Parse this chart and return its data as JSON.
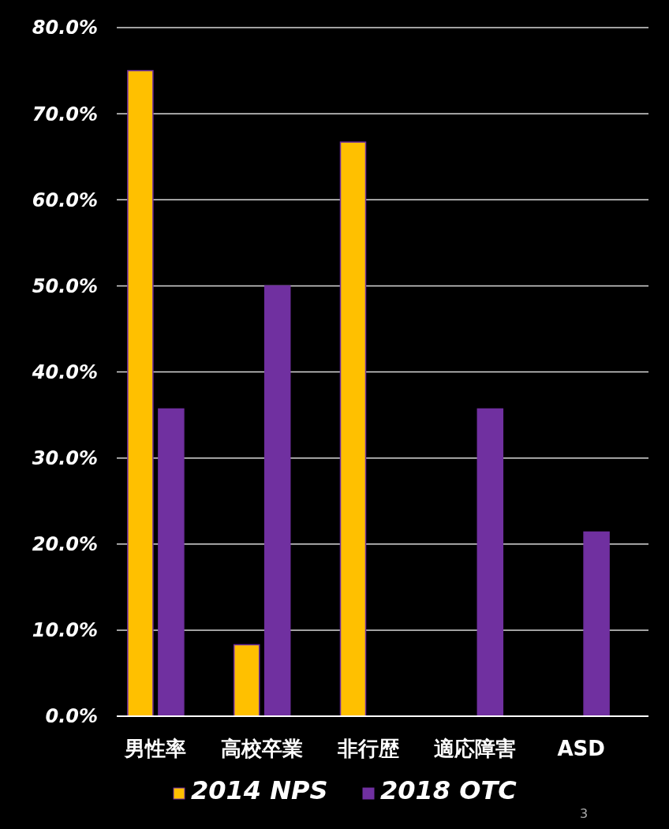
{
  "chart_data": {
    "type": "bar",
    "categories": [
      "男性率",
      "高校卒業",
      "非行歴",
      "適応障害",
      "ASD"
    ],
    "series": [
      {
        "name": "2014 NPS",
        "color": "#ffc000",
        "values": [
          75.0,
          8.3,
          66.7,
          null,
          null
        ]
      },
      {
        "name": "2018 OTC",
        "color": "#7030a0",
        "values": [
          35.7,
          50.0,
          null,
          35.7,
          21.4
        ]
      }
    ],
    "ylim": [
      0,
      80
    ],
    "yticks": [
      {
        "value": 0,
        "label": "0.0%"
      },
      {
        "value": 10,
        "label": "10.0%"
      },
      {
        "value": 20,
        "label": "20.0%"
      },
      {
        "value": 30,
        "label": "30.0%"
      },
      {
        "value": 40,
        "label": "40.0%"
      },
      {
        "value": 50,
        "label": "50.0%"
      },
      {
        "value": 60,
        "label": "60.0%"
      },
      {
        "value": 70,
        "label": "70.0%"
      },
      {
        "value": 80,
        "label": "80.0%"
      }
    ],
    "grid": "y",
    "legend": "bottom",
    "annotations": [
      "3"
    ]
  }
}
